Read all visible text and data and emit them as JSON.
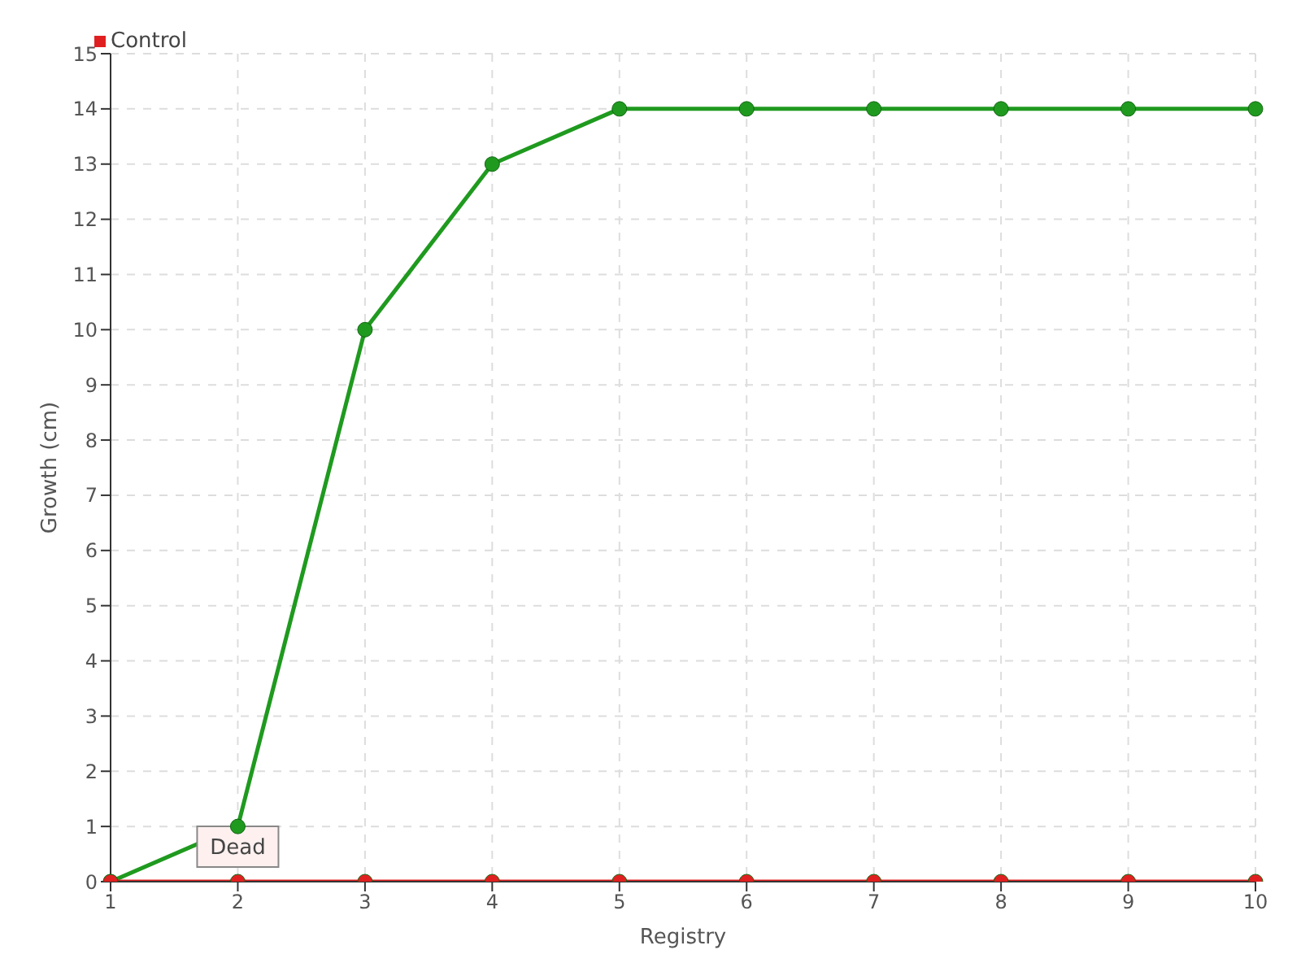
{
  "chart_data": {
    "type": "line",
    "xlabel": "Registry",
    "ylabel": "Growth (cm)",
    "categories": [
      "1",
      "2",
      "3",
      "4",
      "5",
      "6",
      "7",
      "8",
      "9",
      "10"
    ],
    "series": [
      {
        "color": "#1f9a1f",
        "values": [
          0,
          1,
          10,
          13,
          14,
          14,
          14,
          14,
          14,
          14
        ]
      },
      {
        "name": "Control",
        "color": "#e02020",
        "values": [
          0,
          0,
          0,
          0,
          0,
          0,
          0,
          0,
          0,
          0
        ]
      }
    ],
    "ylim": [
      0,
      15
    ],
    "yticks": [
      0,
      1,
      2,
      3,
      4,
      5,
      6,
      7,
      8,
      9,
      10,
      11,
      12,
      13,
      14,
      15
    ],
    "grid": true,
    "legend": "top left",
    "marker": "circle",
    "line_style": "solid",
    "annotations": [
      {
        "text": "Dead",
        "x": "2",
        "y": 0
      }
    ]
  }
}
